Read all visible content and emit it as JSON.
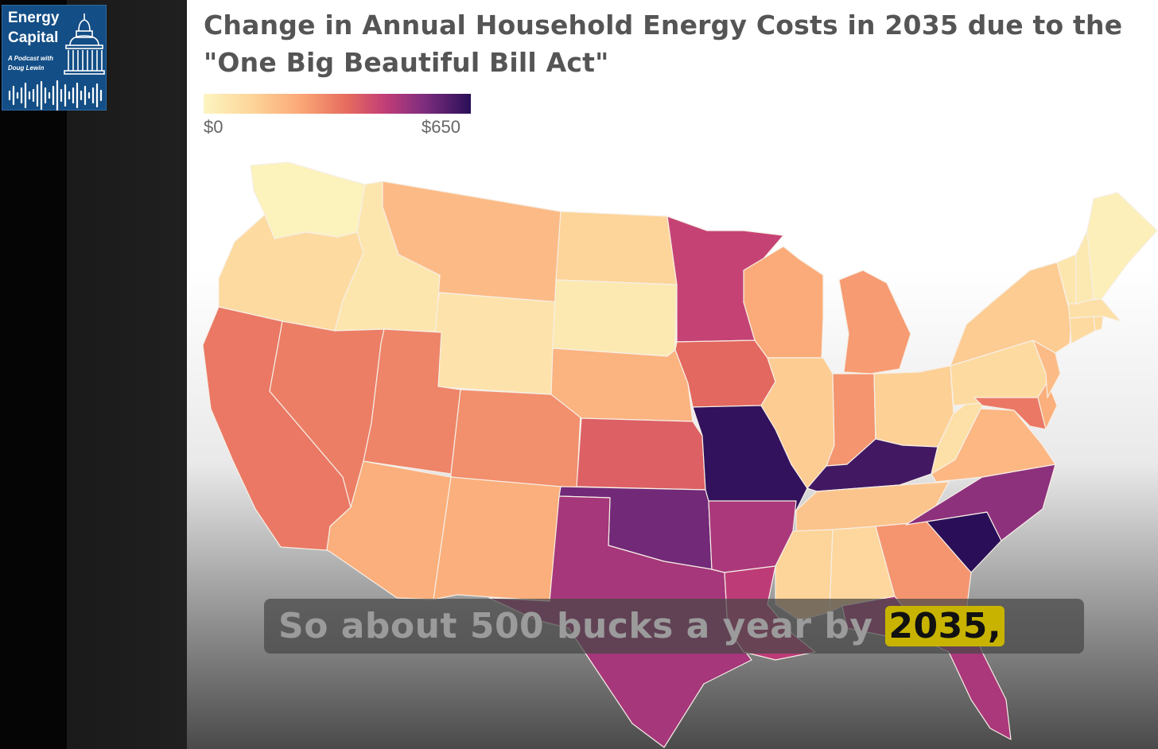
{
  "logo": {
    "title_line1": "Energy",
    "title_line2": "Capital",
    "subtitle_line1": "A Podcast with",
    "subtitle_line2": "Doug Lewin"
  },
  "chart_title": "Change in Annual Household Energy Costs in 2035 due to the \"One Big Beautiful Bill Act\"",
  "legend": {
    "min_label": "$0",
    "max_label": "$650",
    "colors": [
      "#fcf5c0",
      "#fdd59a",
      "#fba877",
      "#e56a5e",
      "#c13d77",
      "#812e7f",
      "#2a0f58"
    ]
  },
  "caption": {
    "text": "So about 500 bucks a year by ",
    "highlight": "2035,"
  },
  "chart_data": {
    "type": "choropleth",
    "title": "Change in Annual Household Energy Costs in 2035 due to the \"One Big Beautiful Bill Act\"",
    "scale_min": 0,
    "scale_max": 650,
    "values": {
      "WA": 10,
      "OR": 90,
      "CA": 300,
      "ID": 50,
      "NV": 290,
      "UT": 280,
      "AZ": 200,
      "MT": 170,
      "WY": 60,
      "CO": 260,
      "NM": 200,
      "ND": 110,
      "SD": 40,
      "NE": 190,
      "KS": 350,
      "OK": 560,
      "TX": 480,
      "MN": 420,
      "IA": 330,
      "MO": 640,
      "AR": 470,
      "LA": 440,
      "WI": 210,
      "IL": 130,
      "MI": 240,
      "IN": 250,
      "OH": 120,
      "KY": 620,
      "TN": 150,
      "MS": 110,
      "AL": 100,
      "GA": 250,
      "FL": 470,
      "SC": 650,
      "NC": 520,
      "VA": 180,
      "WV": 70,
      "PA": 90,
      "NY": 130,
      "MD": 300,
      "DE": 200,
      "NJ": 170,
      "CT": 90,
      "RI": 90,
      "MA": 70,
      "VT": 50,
      "NH": 40,
      "ME": 20
    }
  }
}
